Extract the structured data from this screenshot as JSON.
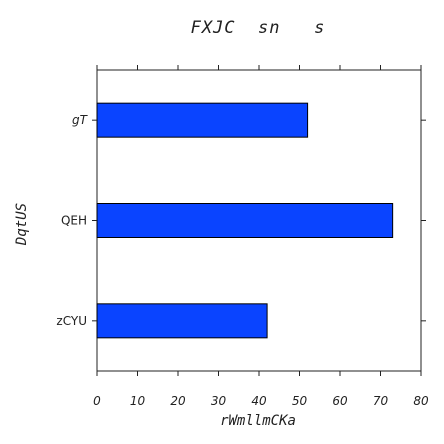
{
  "chart_data": {
    "type": "bar",
    "orientation": "horizontal",
    "title": "FXJC  sn   s",
    "xlabel": "rWmllmCKa",
    "ylabel": "DqtUS",
    "categories": [
      "gT",
      "QEH",
      "zCYU"
    ],
    "values": [
      52,
      73,
      42
    ],
    "xlim": [
      0,
      80
    ],
    "xticks": [
      0,
      10,
      20,
      30,
      40,
      50,
      60,
      70,
      80
    ],
    "grid": false,
    "bar_color": "#0a44ff",
    "bar_edge_color": "#000000"
  }
}
